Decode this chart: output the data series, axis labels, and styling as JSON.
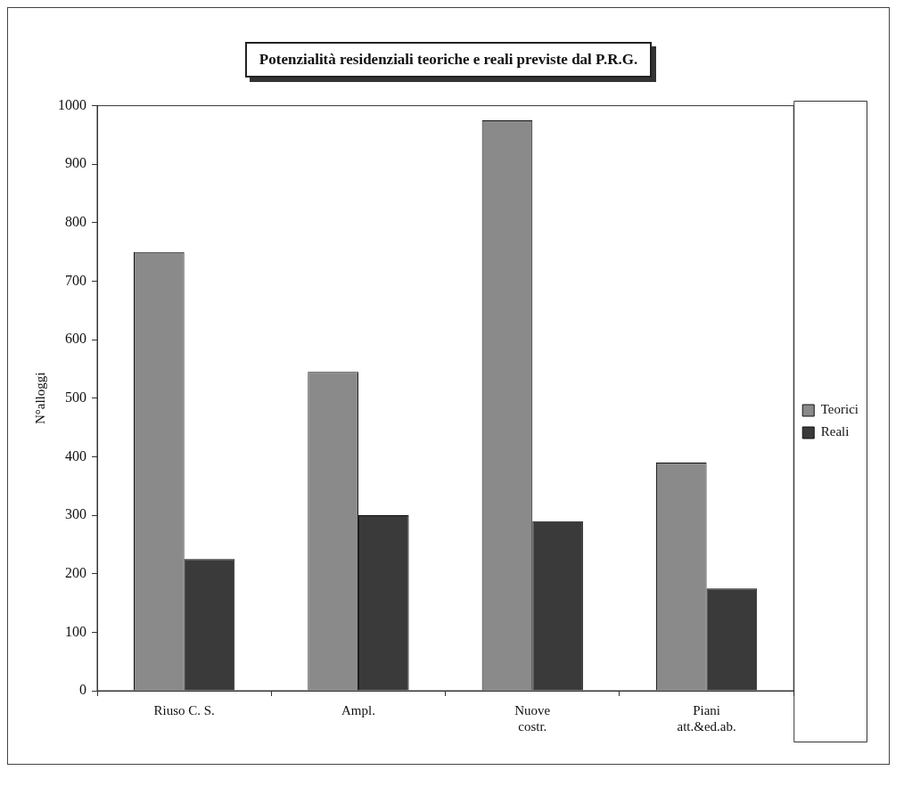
{
  "chart_data": {
    "type": "bar",
    "title": "Potenzialità residenziali teoriche e reali previste dal P.R.G.",
    "ylabel": "N°alloggi",
    "categories": [
      "Riuso C. S.",
      "Ampl.",
      "Nuove costr.",
      "Piani att.&ed.ab."
    ],
    "series": [
      {
        "name": "Teorici",
        "color": "#8a8a8a",
        "values": [
          750,
          545,
          975,
          390
        ]
      },
      {
        "name": "Reali",
        "color": "#3a3a3a",
        "values": [
          225,
          300,
          290,
          175
        ]
      }
    ],
    "ylim": [
      0,
      1000
    ],
    "yticks": [
      0,
      100,
      200,
      300,
      400,
      500,
      600,
      700,
      800,
      900,
      1000
    ],
    "grid": false,
    "legend": "right"
  }
}
